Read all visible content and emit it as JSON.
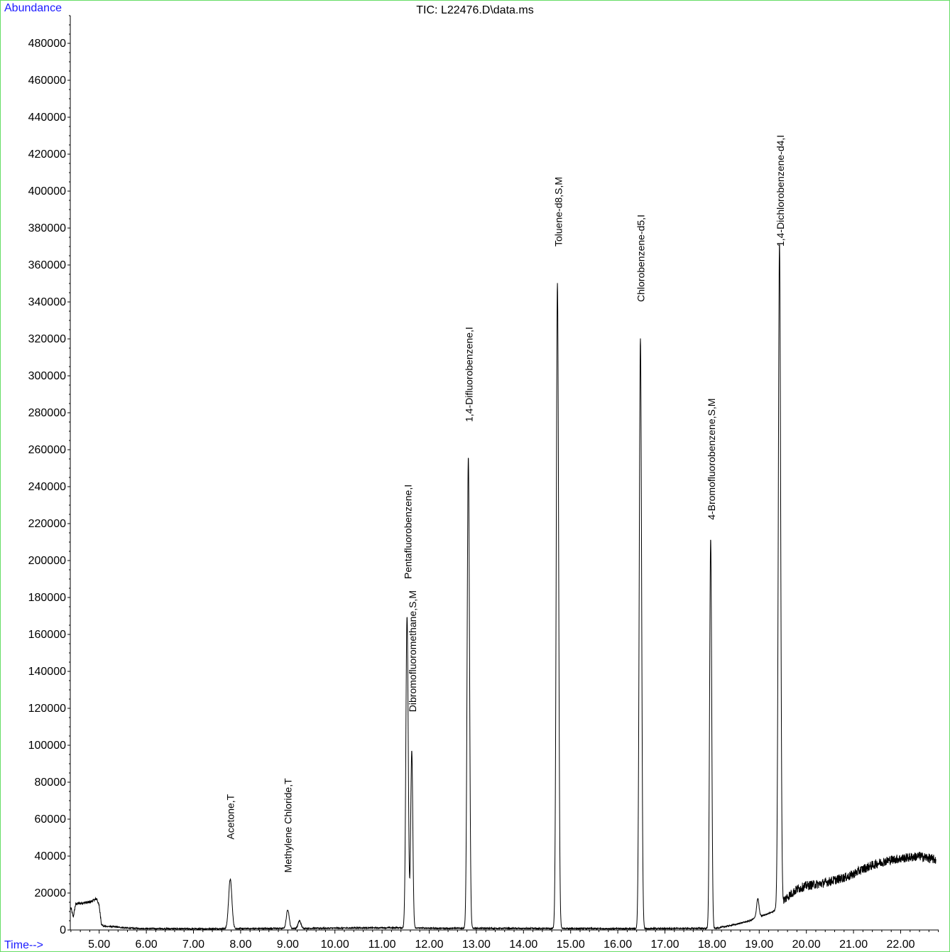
{
  "chart_data": {
    "type": "line",
    "title": "TIC: L22476.D\\data.ms",
    "ylabel": "Abundance",
    "xlabel": "Time-->",
    "xlim": [
      4.4,
      22.8
    ],
    "ylim": [
      0,
      495000
    ],
    "x_ticks": [
      "5.00",
      "6.00",
      "7.00",
      "8.00",
      "9.00",
      "10.00",
      "11.00",
      "12.00",
      "13.00",
      "14.00",
      "15.00",
      "16.00",
      "17.00",
      "18.00",
      "19.00",
      "20.00",
      "21.00",
      "22.00"
    ],
    "x_tick_values": [
      5,
      6,
      7,
      8,
      9,
      10,
      11,
      12,
      13,
      14,
      15,
      16,
      17,
      18,
      19,
      20,
      21,
      22
    ],
    "y_ticks": [
      "0",
      "20000",
      "40000",
      "60000",
      "80000",
      "100000",
      "120000",
      "140000",
      "160000",
      "180000",
      "200000",
      "220000",
      "240000",
      "260000",
      "280000",
      "300000",
      "320000",
      "340000",
      "360000",
      "380000",
      "400000",
      "420000",
      "440000",
      "460000",
      "480000"
    ],
    "y_tick_values": [
      0,
      20000,
      40000,
      60000,
      80000,
      100000,
      120000,
      140000,
      160000,
      180000,
      200000,
      220000,
      240000,
      260000,
      280000,
      300000,
      320000,
      340000,
      360000,
      380000,
      400000,
      420000,
      440000,
      460000,
      480000
    ],
    "series": [
      {
        "line_color": "#000000",
        "baseline": [
          [
            4.4,
            12000
          ],
          [
            4.45,
            7000
          ],
          [
            4.5,
            14000
          ],
          [
            4.6,
            14500
          ],
          [
            4.8,
            15000
          ],
          [
            4.95,
            17000
          ],
          [
            5.0,
            13000
          ],
          [
            5.05,
            3000
          ],
          [
            5.1,
            2000
          ],
          [
            5.3,
            1800
          ],
          [
            5.6,
            1000
          ],
          [
            6.0,
            800
          ],
          [
            7.0,
            600
          ],
          [
            7.6,
            700
          ],
          [
            8.5,
            800
          ],
          [
            9.5,
            900
          ],
          [
            10.5,
            1100
          ],
          [
            11.3,
            1200
          ],
          [
            12.2,
            900
          ],
          [
            13.2,
            900
          ],
          [
            14.5,
            800
          ],
          [
            15.0,
            800
          ],
          [
            16.2,
            700
          ],
          [
            17.0,
            800
          ],
          [
            17.8,
            900
          ],
          [
            18.0,
            500
          ],
          [
            18.2,
            1500
          ],
          [
            18.5,
            3000
          ],
          [
            18.8,
            5000
          ],
          [
            18.95,
            7000
          ],
          [
            19.1,
            8000
          ],
          [
            19.3,
            10000
          ],
          [
            19.45,
            14000
          ],
          [
            19.6,
            18000
          ],
          [
            19.8,
            22000
          ],
          [
            20.0,
            24000
          ],
          [
            20.3,
            25000
          ],
          [
            20.6,
            27000
          ],
          [
            20.9,
            29000
          ],
          [
            21.2,
            33000
          ],
          [
            21.5,
            36000
          ],
          [
            21.8,
            38000
          ],
          [
            22.1,
            39000
          ],
          [
            22.4,
            40000
          ],
          [
            22.75,
            38000
          ]
        ],
        "peaks": [
          {
            "rt": 7.78,
            "height": 27500,
            "width": 0.035
          },
          {
            "rt": 9.0,
            "height": 11000,
            "width": 0.03
          },
          {
            "rt": 9.25,
            "height": 5000,
            "width": 0.03
          },
          {
            "rt": 11.53,
            "height": 170000,
            "width": 0.025
          },
          {
            "rt": 11.63,
            "height": 97000,
            "width": 0.022
          },
          {
            "rt": 12.83,
            "height": 256000,
            "width": 0.025
          },
          {
            "rt": 14.72,
            "height": 350000,
            "width": 0.025
          },
          {
            "rt": 16.48,
            "height": 320000,
            "width": 0.025
          },
          {
            "rt": 17.97,
            "height": 212000,
            "width": 0.022
          },
          {
            "rt": 18.97,
            "height": 17000,
            "width": 0.025
          },
          {
            "rt": 19.43,
            "height": 372000,
            "width": 0.025
          }
        ]
      }
    ],
    "peak_labels": [
      {
        "text": "Acetone,T",
        "rt": 7.78,
        "anchor_y": 49000
      },
      {
        "text": "Methylene Chloride,T",
        "rt": 9.0,
        "anchor_y": 31000
      },
      {
        "text": "Pentafluorobenzene,I",
        "rt": 11.55,
        "anchor_y": 190000
      },
      {
        "text": "Dibromofluoromethane,S,M",
        "rt": 11.65,
        "anchor_y": 118000
      },
      {
        "text": "1,4-Difluorobenzene,I",
        "rt": 12.84,
        "anchor_y": 275000
      },
      {
        "text": "Toluene-d8,S,M",
        "rt": 14.74,
        "anchor_y": 370000
      },
      {
        "text": "Chlorobenzene-d5,I",
        "rt": 16.49,
        "anchor_y": 340000
      },
      {
        "text": "4-Bromofluorobenzene,S,M",
        "rt": 17.99,
        "anchor_y": 222000
      },
      {
        "text": "1,4-Dichlorobenzene-d4,I",
        "rt": 19.45,
        "anchor_y": 370000
      }
    ]
  }
}
